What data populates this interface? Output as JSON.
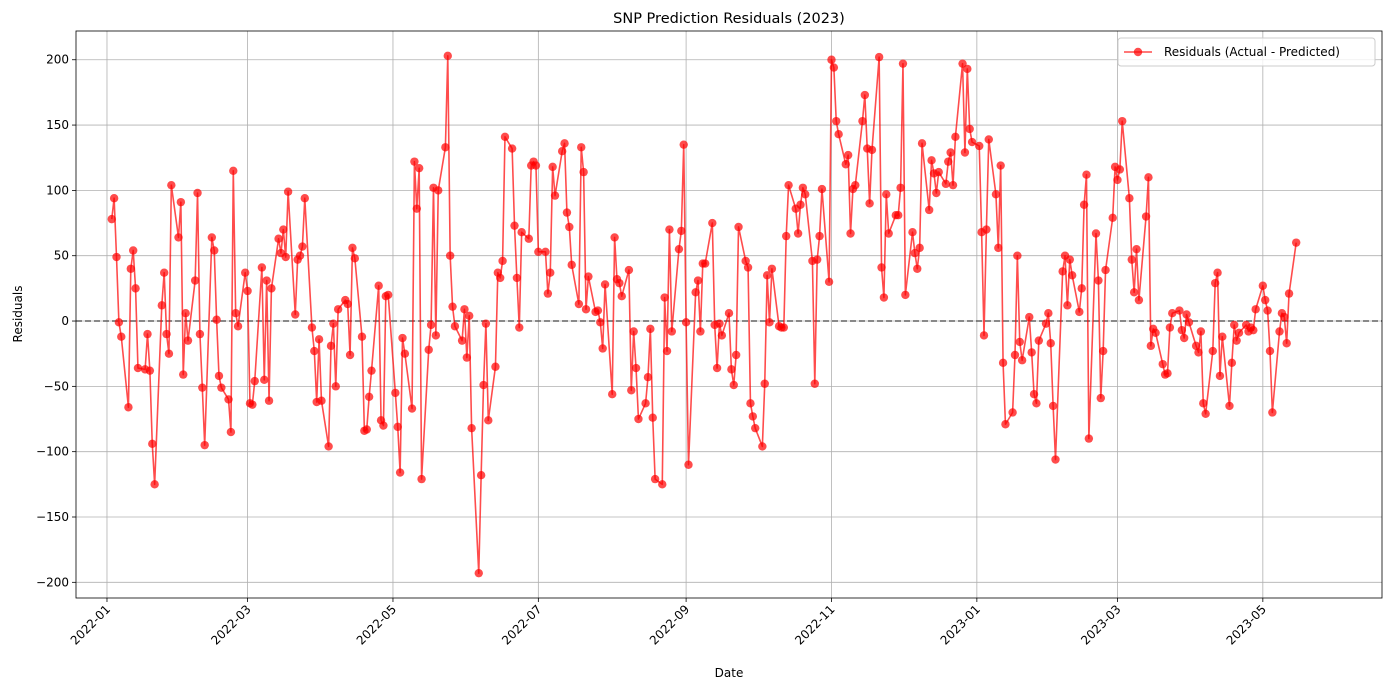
{
  "chart_data": {
    "type": "line",
    "title": "SNP Prediction Residuals (2023)",
    "xlabel": "Date",
    "ylabel": "Residuals",
    "xlim": [
      "2021-12-19",
      "2023-06-20"
    ],
    "ylim": [
      -212,
      222
    ],
    "x_ticks": [
      "2022-01",
      "2022-03",
      "2022-05",
      "2022-07",
      "2022-09",
      "2022-11",
      "2023-01",
      "2023-03",
      "2023-05"
    ],
    "x_tick_dates": [
      "2022-01-01",
      "2022-03-01",
      "2022-05-01",
      "2022-07-01",
      "2022-09-01",
      "2022-11-01",
      "2023-01-01",
      "2023-03-01",
      "2023-05-01"
    ],
    "y_ticks": [
      -200,
      -150,
      -100,
      -50,
      0,
      50,
      100,
      150,
      200
    ],
    "y_tick_labels": [
      "−200",
      "−150",
      "−100",
      "−50",
      "0",
      "50",
      "100",
      "150",
      "200"
    ],
    "grid": true,
    "reference_line": {
      "y": 0,
      "style": "dashed",
      "color": "#555555"
    },
    "legend_position": "top-right",
    "series": [
      {
        "name": "Residuals (Actual - Predicted)",
        "color": "#ff0000",
        "marker": "circle",
        "x_start": "2022-01-03",
        "x_frequency": "business-day",
        "values": [
          78,
          94,
          49,
          -1,
          -12,
          -66,
          40,
          54,
          25,
          -36,
          -37,
          -10,
          -38,
          -94,
          -125,
          12,
          37,
          -10,
          -25,
          104,
          64,
          91,
          -41,
          6,
          -15,
          31,
          98,
          -10,
          -51,
          -95,
          64,
          54,
          1,
          -42,
          -51,
          -60,
          -85,
          115,
          6,
          -4,
          37,
          23,
          -63,
          -64,
          -46,
          41,
          -45,
          31,
          -61,
          25,
          63,
          52,
          70,
          49,
          99,
          5,
          47,
          50,
          57,
          94,
          -5,
          -23,
          -62,
          -14,
          -61,
          -96,
          -19,
          -2,
          -50,
          9,
          16,
          13,
          -26,
          56,
          48,
          -12,
          -84,
          -83,
          -58,
          -38,
          27,
          -76,
          -80,
          19,
          20,
          -55,
          -81,
          -116,
          -13,
          -25,
          -67,
          122,
          86,
          117,
          -121,
          -22,
          -3,
          102,
          -11,
          100,
          133,
          203,
          50,
          11,
          -4,
          -15,
          9,
          -28,
          4,
          -82,
          -193,
          -118,
          -49,
          -2,
          -76,
          -35,
          37,
          33,
          46,
          141,
          132,
          73,
          33,
          -5,
          68,
          63,
          119,
          122,
          119,
          53,
          53,
          21,
          37,
          118,
          96,
          130,
          136,
          83,
          72,
          43,
          13,
          133,
          114,
          9,
          34,
          7,
          8,
          -1,
          -21,
          28,
          -56,
          64,
          32,
          29,
          19,
          39,
          -53,
          -8,
          -36,
          -75,
          -63,
          -43,
          -6,
          -74,
          -121,
          -125,
          18,
          -23,
          70,
          -8,
          55,
          69,
          135,
          -1,
          -110,
          22,
          31,
          -8,
          44,
          44,
          75,
          -3,
          -36,
          -2,
          -11,
          6,
          -37,
          -49,
          -26,
          72,
          46,
          41,
          -63,
          -73,
          -82,
          -96,
          -48,
          35,
          -1,
          40,
          -4,
          -5,
          -5,
          65,
          104,
          86,
          67,
          89,
          102,
          97,
          46,
          -48,
          47,
          65,
          101,
          30,
          200,
          194,
          153,
          143,
          120,
          127,
          67,
          101,
          104,
          153,
          173,
          132,
          90,
          131,
          202,
          41,
          18,
          97,
          67,
          81,
          81,
          102,
          197,
          20,
          68,
          52,
          40,
          56,
          136,
          85,
          123,
          113,
          98,
          114,
          105,
          122,
          129,
          104,
          141,
          197,
          129,
          193,
          147,
          137,
          134,
          68,
          -11,
          70,
          139,
          97,
          56,
          119,
          -32,
          -79,
          -70,
          -26,
          50,
          -16,
          -30,
          3,
          -24,
          -56,
          -63,
          -15,
          -2,
          6,
          -17,
          -65,
          -106,
          38,
          50,
          12,
          47,
          35,
          7,
          25,
          89,
          112,
          -90,
          67,
          31,
          -59,
          -23,
          39,
          79,
          118,
          108,
          116,
          153,
          94,
          47,
          22,
          55,
          16,
          80,
          110,
          -19,
          -6,
          -9,
          -33,
          -41,
          -40,
          -5,
          6,
          8,
          -7,
          -13,
          5,
          -1,
          -19,
          -24,
          -8,
          -63,
          -71,
          -23,
          29,
          37,
          -42,
          -12,
          -65,
          -32,
          -3,
          -15,
          -9,
          -3,
          -8,
          -5,
          -7,
          9,
          27,
          16,
          8,
          -23,
          -70,
          -8,
          6,
          3,
          -17,
          21,
          60
        ]
      }
    ]
  }
}
